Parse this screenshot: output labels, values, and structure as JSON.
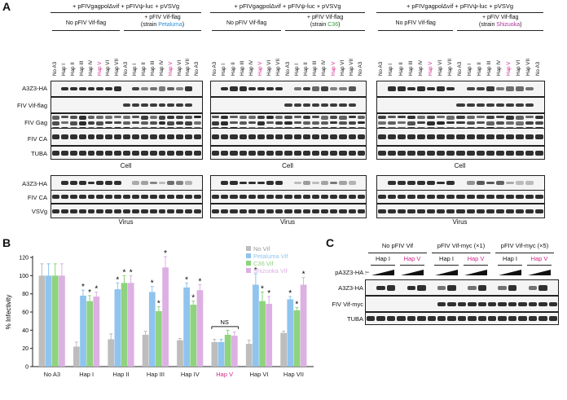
{
  "panels": {
    "A": "A",
    "B": "B",
    "C": "C"
  },
  "panelA": {
    "groups": [
      {
        "header": "+ pFIVgagpolΔvif + pFIVψ-luc + pVSVg",
        "left_label": "No pFIV Vif-flag",
        "right_label_prefix": "+ pFIV Vif-flag",
        "strain_prefix": "(strain ",
        "strain": "Petaluma",
        "strain_suffix": ")",
        "strain_color": "#2f8fd6"
      },
      {
        "header": "+ pFIVgagpolΔvif + pFIVψ-luc + pVSVg",
        "left_label": "No pFIV Vif-flag",
        "right_label_prefix": "+ pFIV Vif-flag",
        "strain_prefix": "(strain ",
        "strain": "C36",
        "strain_suffix": ")",
        "strain_color": "#2e9f3a"
      },
      {
        "header": "+ pFIVgagpolΔvif + pFIVψ-luc + pVSVg",
        "left_label": "No pFIV Vif-flag",
        "right_label_prefix": "+ pFIV Vif-flag",
        "strain_prefix": "(strain ",
        "strain": "Shizuoka",
        "strain_suffix": ")",
        "strain_color": "#a7319a"
      }
    ],
    "lanes": [
      "No A3",
      "Hap I",
      "Hap II",
      "Hap III",
      "Hap IV",
      "Hap V",
      "Hap VI",
      "Hap VII",
      "No A3",
      "Hap I",
      "Hap II",
      "Hap III",
      "Hap IV",
      "Hap V",
      "Hap VI",
      "Hap VII",
      "No A3"
    ],
    "cell_rows": [
      "A3Z3-HA",
      "FIV Vif-flag",
      "FIV Gag",
      "FIV CA",
      "TUBA"
    ],
    "virus_rows": [
      "A3Z3-HA",
      "FIV CA",
      "VSVg"
    ],
    "cell_caption": "Cell",
    "virus_caption": "Virus"
  },
  "panelB": {
    "ylabel": "% Infectivity",
    "legend": [
      {
        "name": "No Vif",
        "color": "#bdbdbd"
      },
      {
        "name": "Petaluma Vif",
        "color": "#8fc4ee"
      },
      {
        "name": "C36 Vif",
        "color": "#8fd37e"
      },
      {
        "name": "Shizuoka Vif",
        "color": "#ddb0e3"
      }
    ],
    "ns_label": "NS",
    "star": "*",
    "chart_data": {
      "type": "bar",
      "categories": [
        "No A3",
        "Hap I",
        "Hap II",
        "Hap III",
        "Hap IV",
        "Hap V",
        "Hap VI",
        "Hap VII"
      ],
      "category_colors": [
        "#222222",
        "#222222",
        "#222222",
        "#222222",
        "#222222",
        "#d0268a",
        "#222222",
        "#222222"
      ],
      "ylim": [
        0,
        120
      ],
      "yticks": [
        0,
        20,
        40,
        60,
        80,
        100,
        120
      ],
      "ylabel": "% Infectivity",
      "series": [
        {
          "name": "No Vif",
          "values": [
            100,
            22,
            30,
            35,
            29,
            27,
            25,
            37
          ],
          "errors": [
            13,
            5,
            6,
            4,
            2,
            3,
            4,
            2
          ]
        },
        {
          "name": "Petaluma Vif",
          "values": [
            100,
            78,
            85,
            82,
            87,
            27,
            90,
            74
          ],
          "errors": [
            13,
            6,
            7,
            6,
            5,
            3,
            12,
            3
          ]
        },
        {
          "name": "C36 Vif",
          "values": [
            100,
            72,
            92,
            61,
            68,
            35,
            72,
            62
          ],
          "errors": [
            13,
            6,
            8,
            5,
            4,
            5,
            10,
            3
          ]
        },
        {
          "name": "Shizuoka Vif",
          "values": [
            100,
            77,
            92,
            109,
            84,
            34,
            69,
            90
          ],
          "errors": [
            13,
            5,
            8,
            12,
            6,
            4,
            8,
            8
          ]
        }
      ],
      "significant": [
        [
          false,
          false,
          false,
          false
        ],
        [
          false,
          true,
          true,
          true
        ],
        [
          false,
          true,
          true,
          true
        ],
        [
          false,
          true,
          true,
          true
        ],
        [
          false,
          true,
          true,
          true
        ],
        [
          false,
          false,
          false,
          false
        ],
        [
          false,
          true,
          true,
          true
        ],
        [
          false,
          true,
          true,
          true
        ]
      ]
    }
  },
  "panelC": {
    "groups": [
      {
        "label": "No pFIV Vif"
      },
      {
        "label": "pFIV Vif-myc (×1)"
      },
      {
        "label": "pFIV Vif-myc (×5)"
      }
    ],
    "haps": [
      "Hap I",
      "Hap V",
      "Hap I",
      "Hap V",
      "Hap I",
      "Hap V"
    ],
    "dose_label": "pA3Z3-HA :",
    "dash": "−",
    "rows": [
      "A3Z3-HA",
      "FIV Vif-myc",
      "TUBA"
    ]
  }
}
